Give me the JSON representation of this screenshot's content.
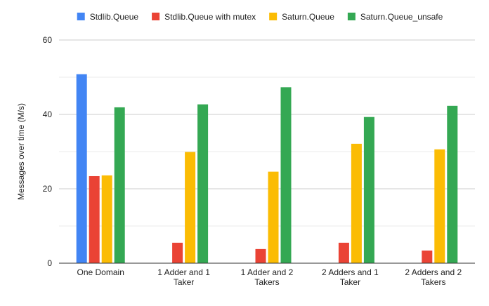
{
  "chart_data": {
    "type": "bar",
    "title": "",
    "xlabel": "",
    "ylabel": "Messages over time (M/s)",
    "ylim": [
      0,
      60
    ],
    "yticks": [
      0,
      20,
      40,
      60
    ],
    "minor_gridlines": true,
    "legend_position": "top",
    "categories": [
      [
        "One Domain"
      ],
      [
        "1 Adder and 1",
        "Taker"
      ],
      [
        "1 Adder and 2",
        "Takers"
      ],
      [
        "2 Adders and 1",
        "Taker"
      ],
      [
        "2 Adders and 2",
        "Takers"
      ]
    ],
    "series": [
      {
        "name": "Stdlib.Queue",
        "color": "#4285f4",
        "values": [
          50.8,
          null,
          null,
          null,
          null
        ]
      },
      {
        "name": "Stdlib.Queue with mutex",
        "color": "#ea4335",
        "values": [
          23.4,
          5.5,
          3.8,
          5.5,
          3.4
        ]
      },
      {
        "name": "Saturn.Queue",
        "color": "#fbbc04",
        "values": [
          23.6,
          29.9,
          24.6,
          32.1,
          30.6
        ]
      },
      {
        "name": "Saturn.Queue_unsafe",
        "color": "#34a853",
        "values": [
          41.9,
          42.7,
          47.3,
          39.3,
          42.3
        ]
      }
    ]
  }
}
